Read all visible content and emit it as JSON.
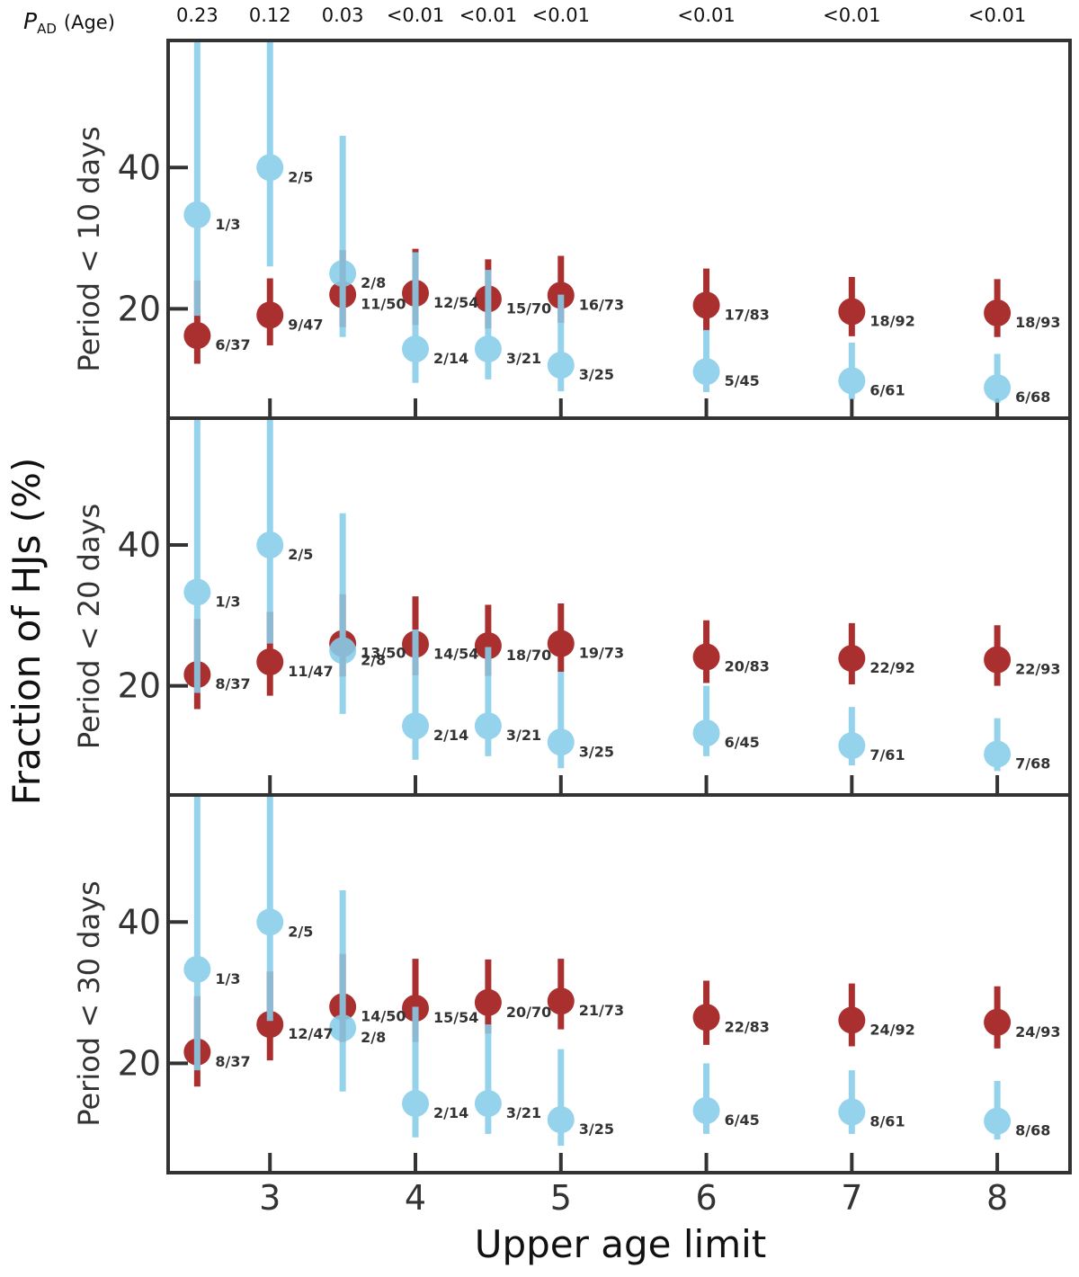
{
  "chart_data": {
    "type": "scatter",
    "xlabel": "Upper age limit",
    "ylabel": "Fraction of HJs (%)",
    "x": [
      2.5,
      3,
      3.5,
      4,
      4.5,
      5,
      6,
      7,
      8
    ],
    "xlim": [
      2.3,
      8.5
    ],
    "xticks": [
      3,
      4,
      5,
      6,
      7,
      8
    ],
    "xtick_labels": [
      "3",
      "4",
      "5",
      "6",
      "7",
      "8"
    ],
    "ylim": [
      4.5,
      58
    ],
    "yticks": [
      20,
      40
    ],
    "ytick_labels": [
      "20",
      "40"
    ],
    "pad_title_main": "P",
    "pad_title_sub": "AD",
    "pad_title_rest": "(Age)",
    "pad_values": [
      "0.23",
      "0.12",
      "0.03",
      "<0.01",
      "<0.01",
      "<0.01",
      "<0.01",
      "<0.01",
      "<0.01"
    ],
    "colors": {
      "red": "#a31f1f",
      "blue": "#87ceeb",
      "axis": "#333333"
    },
    "panels": [
      {
        "label": "Period < 10 days",
        "series": [
          {
            "name": "red",
            "values": [
              16.2,
              19.1,
              22.0,
              22.2,
              21.4,
              21.9,
              20.5,
              19.6,
              19.4
            ],
            "err_low": [
              12.2,
              14.8,
              17.4,
              17.7,
              17.2,
              18.0,
              16.9,
              16.1,
              16.0
            ],
            "err_high": [
              24.0,
              24.3,
              28.3,
              28.5,
              27.0,
              27.5,
              25.7,
              24.5,
              24.2
            ],
            "labels": [
              "6/37",
              "9/47",
              "11/50",
              "12/54",
              "15/70",
              "16/73",
              "17/83",
              "18/92",
              "18/93"
            ]
          },
          {
            "name": "blue",
            "values": [
              33.3,
              40.0,
              25.0,
              14.3,
              14.3,
              12.0,
              11.1,
              9.8,
              8.8
            ],
            "err_low": [
              19.0,
              26.0,
              16.0,
              9.5,
              10.0,
              8.3,
              8.2,
              7.2,
              6.7
            ],
            "err_high": [
              58.0,
              58.0,
              44.5,
              28.0,
              25.5,
              22.0,
              17.0,
              15.2,
              13.6
            ],
            "labels": [
              "1/3",
              "2/5",
              "2/8",
              "2/14",
              "3/21",
              "3/25",
              "5/45",
              "6/61",
              "6/68"
            ]
          }
        ]
      },
      {
        "label": "Period < 20 days",
        "series": [
          {
            "name": "red",
            "values": [
              21.6,
              23.4,
              26.0,
              25.9,
              25.7,
              26.0,
              24.1,
              23.9,
              23.7
            ],
            "err_low": [
              16.7,
              18.6,
              21.3,
              21.5,
              21.4,
              22.0,
              20.4,
              20.2,
              20.0
            ],
            "err_high": [
              29.5,
              30.5,
              33.0,
              32.7,
              31.5,
              31.7,
              29.3,
              28.9,
              28.6
            ],
            "labels": [
              "8/37",
              "11/47",
              "13/50",
              "14/54",
              "18/70",
              "19/73",
              "20/83",
              "22/92",
              "22/93"
            ]
          },
          {
            "name": "blue",
            "values": [
              33.3,
              40.0,
              25.0,
              14.3,
              14.3,
              12.0,
              13.3,
              11.5,
              10.3
            ],
            "err_low": [
              19.0,
              26.0,
              16.0,
              9.5,
              10.0,
              8.3,
              10.0,
              8.7,
              7.9
            ],
            "err_high": [
              58.0,
              58.0,
              44.5,
              28.0,
              25.5,
              22.0,
              20.0,
              17.0,
              15.4
            ],
            "labels": [
              "1/3",
              "2/5",
              "2/8",
              "2/14",
              "3/21",
              "3/25",
              "6/45",
              "7/61",
              "7/68"
            ]
          }
        ]
      },
      {
        "label": "Period < 30 days",
        "series": [
          {
            "name": "red",
            "values": [
              21.6,
              25.5,
              28.0,
              27.8,
              28.6,
              28.8,
              26.5,
              26.1,
              25.8
            ],
            "err_low": [
              16.7,
              20.4,
              23.0,
              23.0,
              24.2,
              24.8,
              22.6,
              22.4,
              22.1
            ],
            "err_high": [
              29.5,
              33.0,
              35.5,
              34.8,
              34.7,
              34.8,
              31.7,
              31.3,
              30.9
            ],
            "labels": [
              "8/37",
              "12/47",
              "14/50",
              "15/54",
              "20/70",
              "21/73",
              "22/83",
              "24/92",
              "24/93"
            ]
          },
          {
            "name": "blue",
            "values": [
              33.3,
              40.0,
              25.0,
              14.3,
              14.3,
              12.0,
              13.3,
              13.1,
              11.8
            ],
            "err_low": [
              19.0,
              26.0,
              16.0,
              9.5,
              10.0,
              8.3,
              10.0,
              10.0,
              9.2
            ],
            "err_high": [
              58.0,
              58.0,
              44.5,
              28.0,
              25.5,
              22.0,
              20.0,
              19.0,
              17.5
            ],
            "labels": [
              "1/3",
              "2/5",
              "2/8",
              "2/14",
              "3/21",
              "3/25",
              "6/45",
              "8/61",
              "8/68"
            ]
          }
        ]
      }
    ]
  }
}
